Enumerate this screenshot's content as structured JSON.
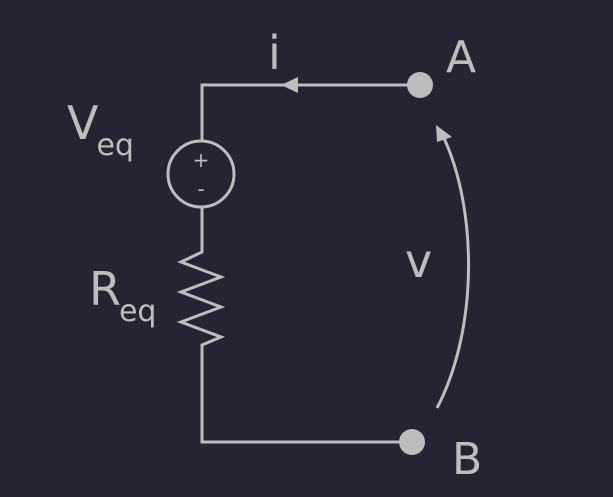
{
  "colors": {
    "background": "#262433",
    "stroke": "#bdbdbd"
  },
  "labels": {
    "current": "i",
    "voltage": "v",
    "node_a": "A",
    "node_b": "B",
    "source_main": "V",
    "source_sub": "eq",
    "resistor_main": "R",
    "resistor_sub": "eq",
    "source_plus": "+",
    "source_minus": "-"
  }
}
